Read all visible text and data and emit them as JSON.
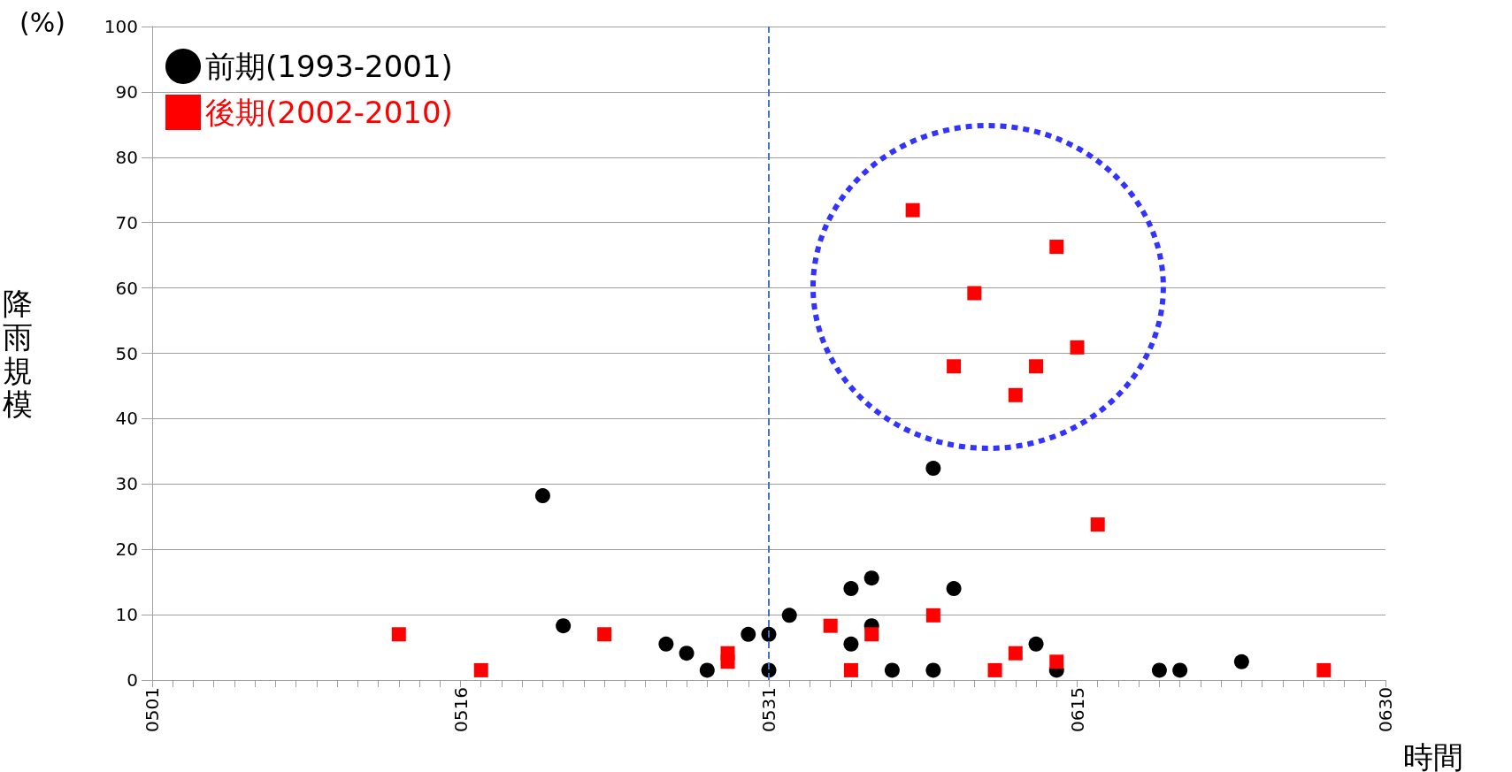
{
  "chart_data": {
    "type": "scatter",
    "ylabel": "降雨規模",
    "xlabel": "時間",
    "annotations": [
      "(%)"
    ],
    "xlim": [
      "--05-01",
      "--06-30"
    ],
    "xticks": [
      {
        "value": "--05-01",
        "label": "0501"
      },
      {
        "value": "--05-16",
        "label": "0516"
      },
      {
        "value": "--05-31",
        "label": "0531"
      },
      {
        "value": "--06-15",
        "label": "0615"
      },
      {
        "value": "--06-30",
        "label": "0630"
      }
    ],
    "ylim": [
      0,
      100
    ],
    "yticks": [
      0,
      10,
      20,
      30,
      40,
      50,
      60,
      70,
      80,
      90,
      100
    ],
    "grid": "y",
    "legend": "top left",
    "ref_lines": [
      {
        "axis": "x",
        "value": "--05-31",
        "color": "#4472c4",
        "line_style": "dashed"
      }
    ],
    "series": [
      {
        "name": "前期(1993-2001)",
        "color": "#000000",
        "marker": "circle",
        "x": [
          "--05-20",
          "--05-21",
          "--05-26",
          "--05-27",
          "--05-28",
          "--05-30",
          "--05-31",
          "--05-31",
          "--06-01",
          "--06-04",
          "--06-04",
          "--06-05",
          "--06-05",
          "--06-06",
          "--06-08",
          "--06-08",
          "--06-09",
          "--06-13",
          "--06-14",
          "--06-19",
          "--06-20",
          "--06-23"
        ],
        "values": [
          28.2,
          8.3,
          5.5,
          4.1,
          1.5,
          7.0,
          7.0,
          1.5,
          9.9,
          14.0,
          5.5,
          15.6,
          8.3,
          1.5,
          32.4,
          1.5,
          14.0,
          5.5,
          1.5,
          1.5,
          1.5,
          2.8
        ]
      },
      {
        "name": "後期(2002-2010)",
        "color": "#ff0000",
        "marker": "square",
        "x": [
          "--05-13",
          "--05-17",
          "--05-23",
          "--05-29",
          "--05-29",
          "--06-03",
          "--06-04",
          "--06-05",
          "--06-07",
          "--06-08",
          "--06-09",
          "--06-10",
          "--06-11",
          "--06-12",
          "--06-12",
          "--06-13",
          "--06-14",
          "--06-14",
          "--06-15",
          "--06-16",
          "--06-27"
        ],
        "values": [
          7.0,
          1.5,
          7.0,
          2.8,
          4.1,
          8.3,
          1.5,
          7.0,
          71.9,
          9.9,
          48.0,
          59.2,
          1.5,
          43.6,
          4.1,
          48.0,
          66.3,
          2.8,
          50.9,
          23.8,
          1.5
        ]
      }
    ]
  }
}
